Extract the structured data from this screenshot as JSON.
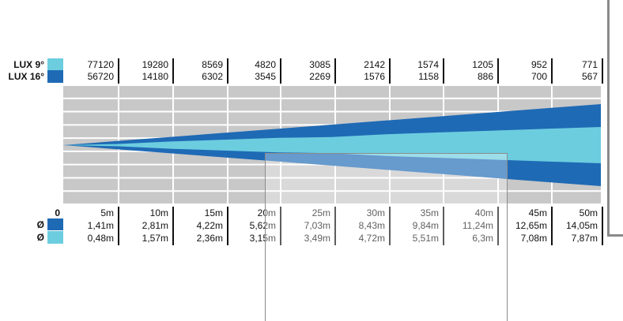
{
  "chart_data": {
    "type": "area",
    "title": "",
    "distances": [
      "0",
      "5m",
      "10m",
      "15m",
      "20m",
      "25m",
      "30m",
      "35m",
      "40m",
      "45m",
      "50m"
    ],
    "distance_values": [
      0,
      5,
      10,
      15,
      20,
      25,
      30,
      35,
      40,
      45,
      50
    ],
    "series": [
      {
        "name": "LUX 9°",
        "lux": [
          "77120",
          "19280",
          "8569",
          "4820",
          "3085",
          "2142",
          "1574",
          "1205",
          "952",
          "771"
        ],
        "diameter": [
          "0,48m",
          "1,57m",
          "2,36m",
          "3,15m",
          "3,49m",
          "4,72m",
          "5,51m",
          "6,3m",
          "7,08m",
          "7,87m"
        ],
        "diameter_values": [
          0,
          0.48,
          1.57,
          2.36,
          3.15,
          3.49,
          4.72,
          5.51,
          6.3,
          7.08,
          7.87
        ],
        "color": "#6ccddf"
      },
      {
        "name": "LUX 16°",
        "lux": [
          "56720",
          "14180",
          "6302",
          "3545",
          "2269",
          "1576",
          "1158",
          "886",
          "700",
          "567"
        ],
        "diameter": [
          "1,41m",
          "2,81m",
          "4,22m",
          "5,62m",
          "7,03m",
          "8,43m",
          "9,84m",
          "11,24m",
          "12,65m",
          "14,05m"
        ],
        "diameter_values": [
          0,
          1.41,
          2.81,
          4.22,
          5.62,
          7.03,
          8.43,
          9.84,
          11.24,
          12.65,
          14.05
        ],
        "color": "#1f6ab5"
      }
    ],
    "diameter_symbol": "Ø",
    "grid": true
  },
  "colors": {
    "plot_background": "#c8c8c8",
    "grid_line": "#ffffff",
    "separator": "#111111",
    "overlay_border": "#8c8c8c"
  }
}
